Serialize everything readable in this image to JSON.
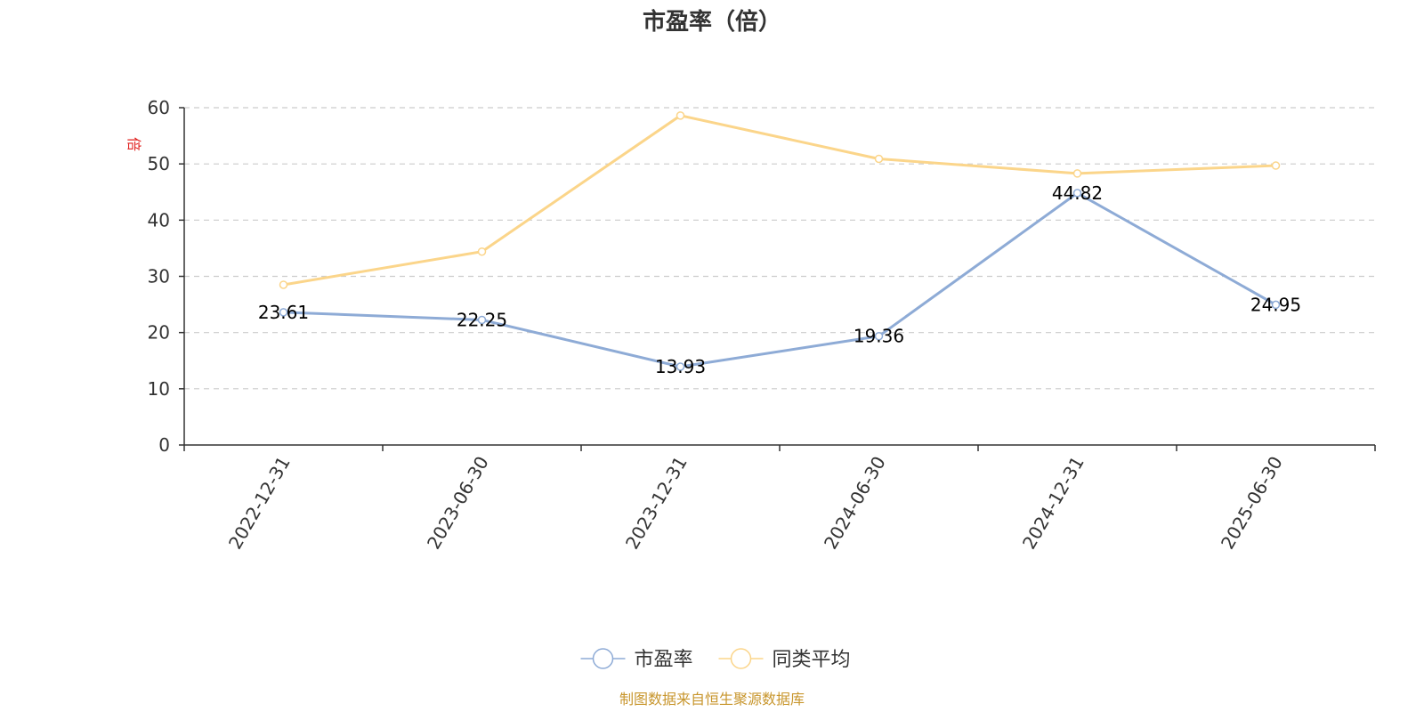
{
  "chart_data": {
    "type": "line",
    "title": "市盈率（倍）",
    "ylabel": "倍",
    "xlabel": "",
    "categories": [
      "2022-12-31",
      "2023-06-30",
      "2023-12-31",
      "2024-06-30",
      "2024-12-31",
      "2025-06-30"
    ],
    "series": [
      {
        "name": "市盈率",
        "values": [
          23.61,
          22.25,
          13.93,
          19.36,
          44.82,
          24.95
        ],
        "color": "#8eabd6",
        "show_labels": true
      },
      {
        "name": "同类平均",
        "values": [
          28.5,
          34.4,
          58.6,
          50.9,
          48.3,
          49.7
        ],
        "color": "#fbd58a",
        "show_labels": false
      }
    ],
    "ylim": [
      0,
      60
    ],
    "yticks": [
      "0",
      "10",
      "20",
      "30",
      "40",
      "50",
      "60"
    ],
    "grid": true,
    "legend_position": "bottom"
  },
  "source": "制图数据来自恒生聚源数据库"
}
